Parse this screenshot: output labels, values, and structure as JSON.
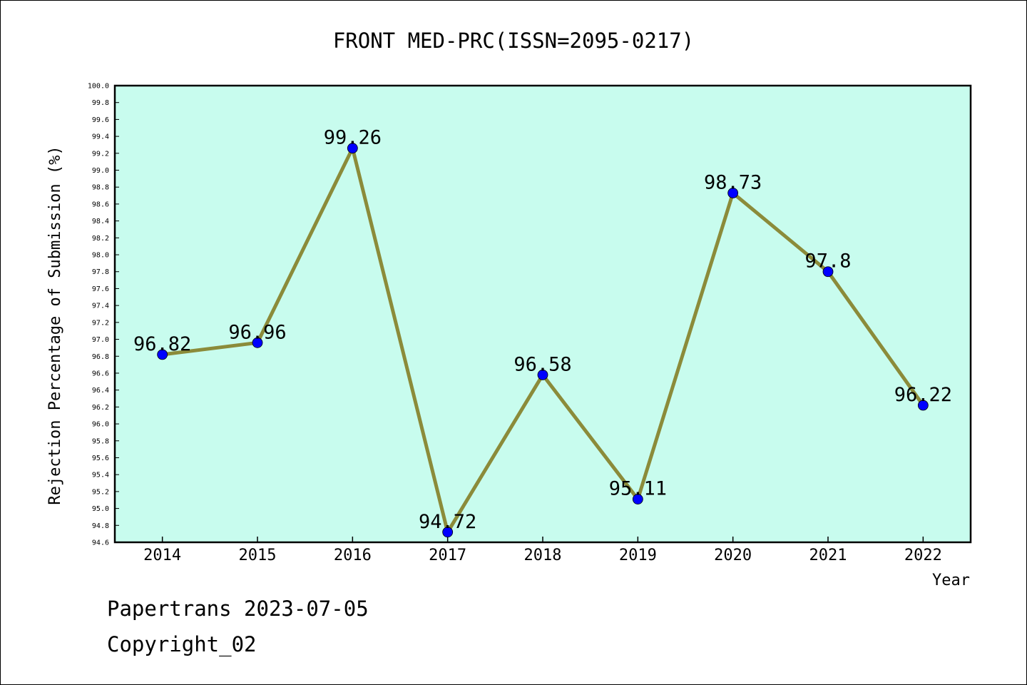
{
  "chart_data": {
    "type": "line",
    "title": "FRONT MED-PRC(ISSN=2095-0217)",
    "xlabel": "Year",
    "ylabel": "Rejection Percentage of Submission (%)",
    "x": [
      "2014",
      "2015",
      "2016",
      "2017",
      "2018",
      "2019",
      "2020",
      "2021",
      "2022"
    ],
    "series": [
      {
        "values": [
          96.82,
          96.96,
          99.26,
          94.72,
          96.58,
          95.11,
          98.73,
          97.8,
          96.22
        ],
        "labels": [
          "96.82",
          "96.96",
          "99.26",
          "94.72",
          "96.58",
          "95.11",
          "98.73",
          "97.8",
          "96.22"
        ]
      }
    ],
    "ylim": [
      94.6,
      100.0
    ],
    "ytick_step": 0.2,
    "grid": false,
    "legend": false,
    "colors": {
      "plot_background": "#c8fcee",
      "line": "#8b8b3a",
      "marker": "#0000ff"
    }
  },
  "footer": {
    "line1": "Papertrans 2023-07-05",
    "line2": "Copyright_02"
  }
}
